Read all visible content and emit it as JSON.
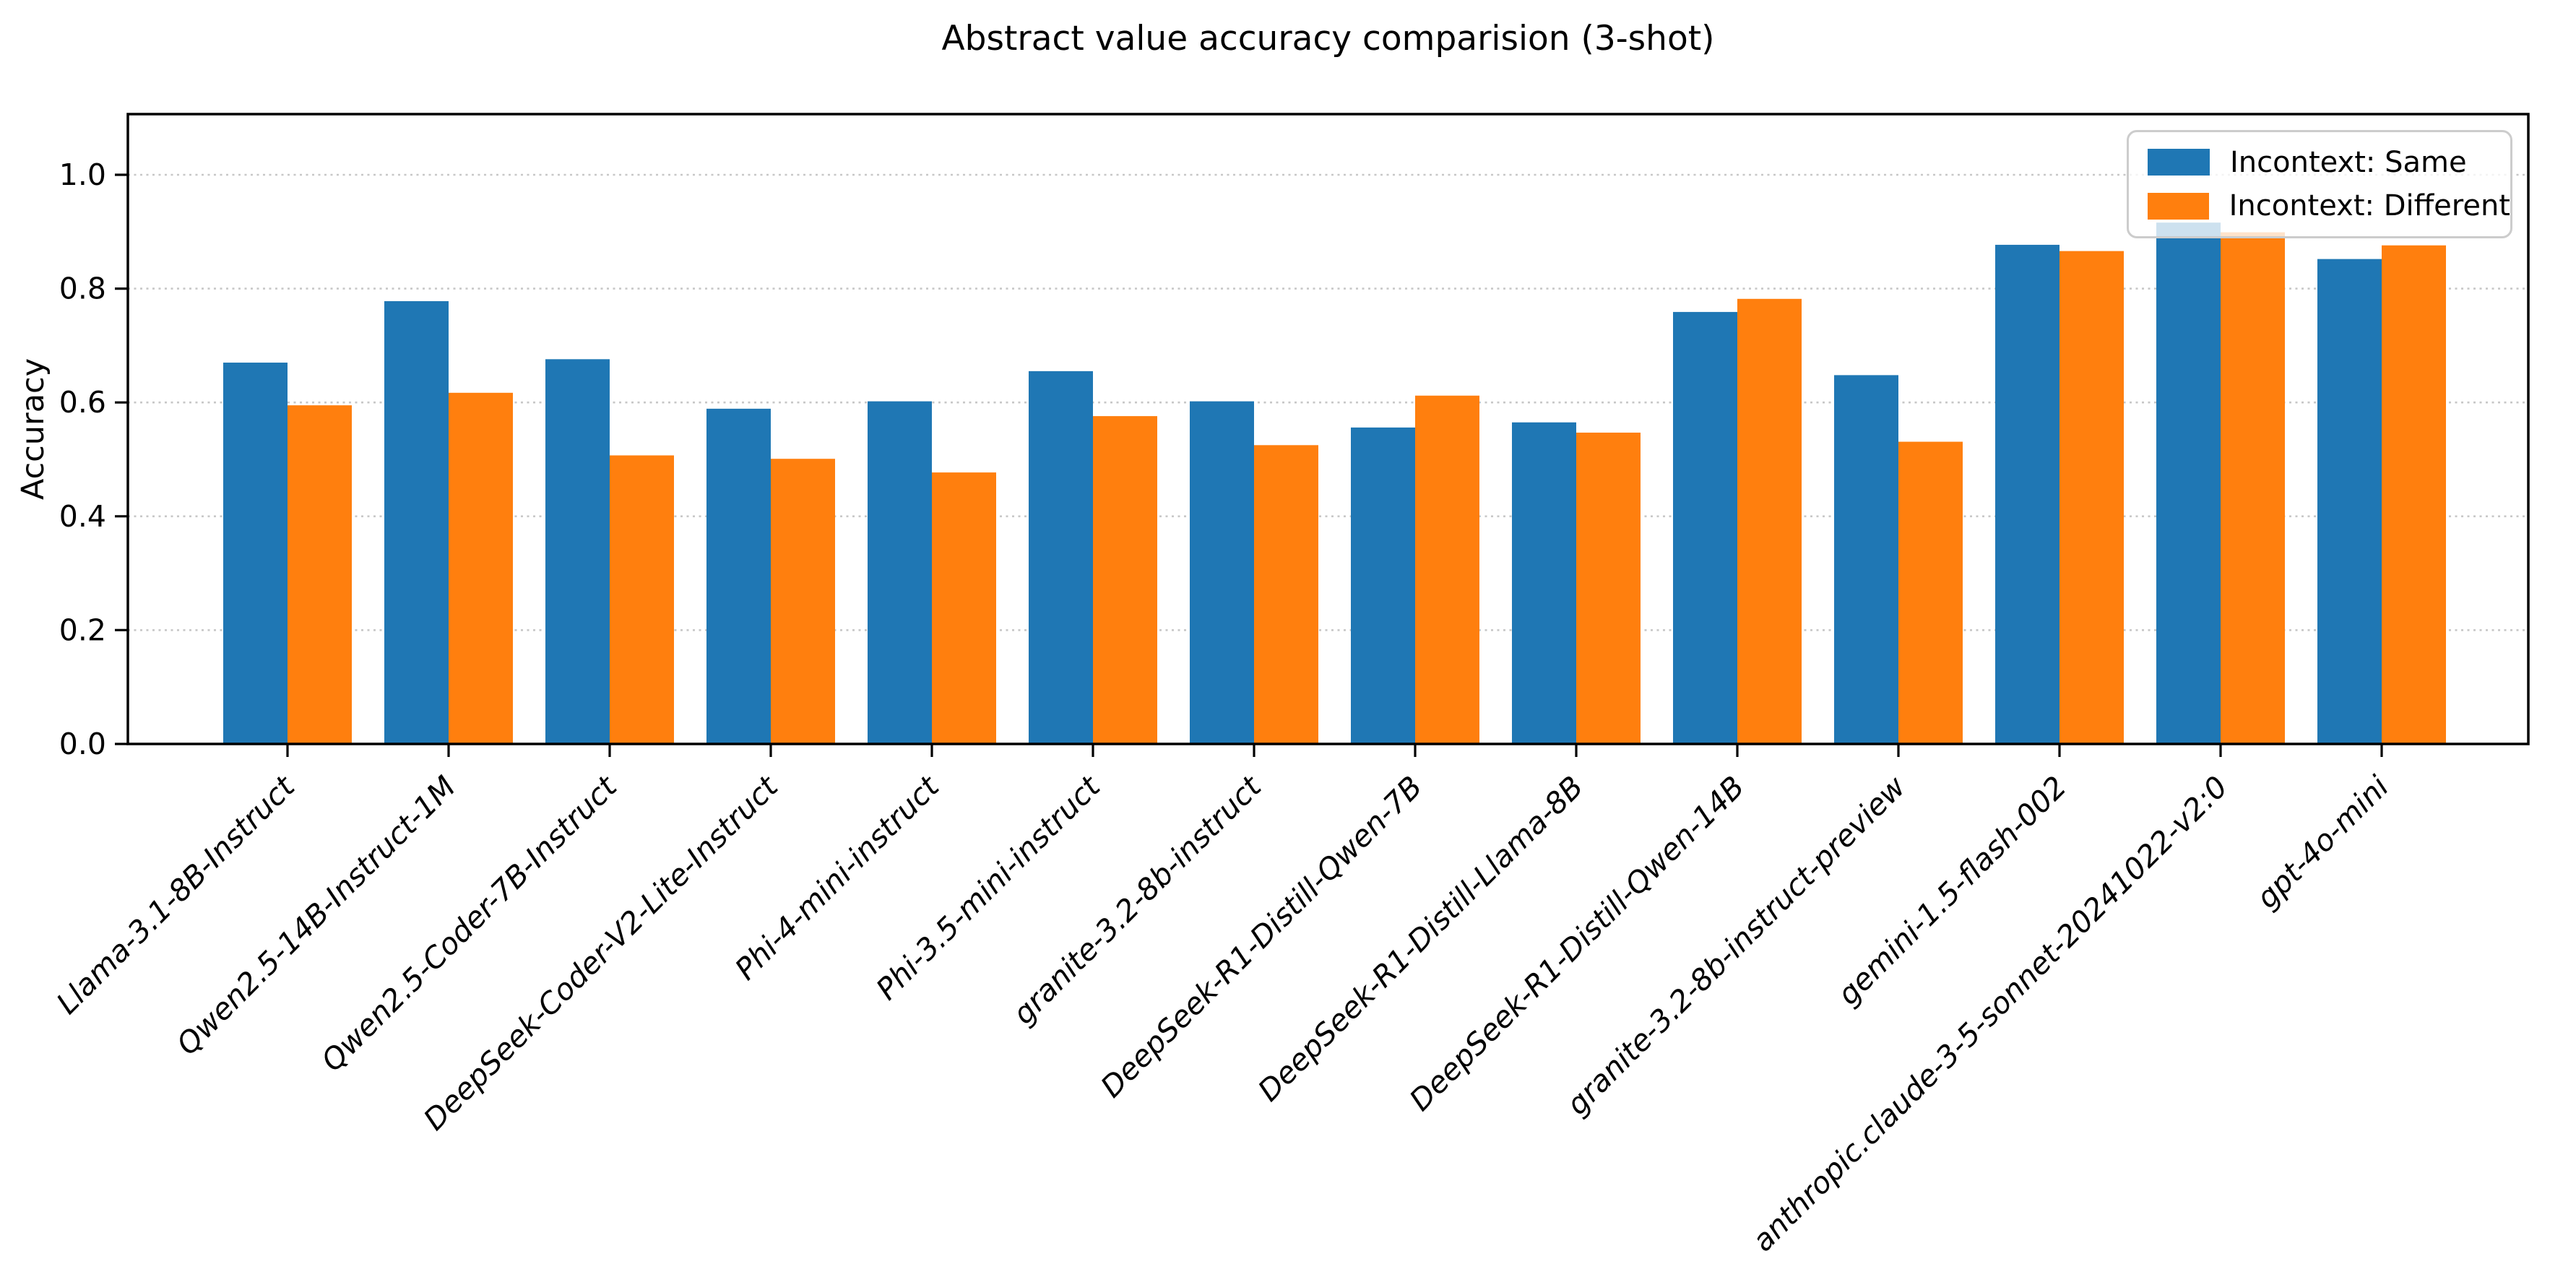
{
  "title": "Abstract value accuracy comparision (3-shot)",
  "ylabel": "Accuracy",
  "chart_data": {
    "type": "bar",
    "title": "Abstract value accuracy comparision (3-shot)",
    "xlabel": "",
    "ylabel": "Accuracy",
    "ylim": [
      0,
      1.08
    ],
    "yticks": [
      0.0,
      0.2,
      0.4,
      0.6,
      0.8,
      1.0
    ],
    "grid": "horizontal dotted",
    "grid_color": "#c7c7c7",
    "legend_position": "upper right",
    "xtick_style": "italic, rotated 45deg, right-anchored",
    "categories": [
      "Llama-3.1-8B-Instruct",
      "Qwen2.5-14B-Instruct-1M",
      "Qwen2.5-Coder-7B-Instruct",
      "DeepSeek-Coder-V2-Lite-Instruct",
      "Phi-4-mini-instruct",
      "Phi-3.5-mini-instruct",
      "granite-3.2-8b-instruct",
      "DeepSeek-R1-Distill-Qwen-7B",
      "DeepSeek-R1-Distill-Llama-8B",
      "DeepSeek-R1-Distill-Qwen-14B",
      "granite-3.2-8b-instruct-preview",
      "gemini-1.5-flash-002",
      "anthropic.claude-3-5-sonnet-20241022-v2:0",
      "gpt-4o-mini"
    ],
    "series": [
      {
        "name": "Incontext: Same",
        "color": "#1f77b4",
        "values": [
          0.67,
          0.778,
          0.676,
          0.589,
          0.602,
          0.655,
          0.602,
          0.556,
          0.565,
          0.759,
          0.648,
          0.877,
          0.916,
          0.852
        ]
      },
      {
        "name": "Incontext: Different",
        "color": "#ff7f0e",
        "values": [
          0.595,
          0.617,
          0.507,
          0.501,
          0.477,
          0.576,
          0.525,
          0.612,
          0.547,
          0.782,
          0.531,
          0.866,
          0.899,
          0.876
        ]
      }
    ]
  }
}
